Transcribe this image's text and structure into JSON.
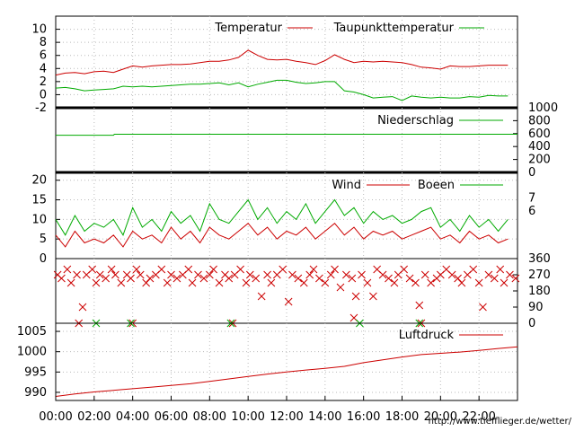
{
  "credit": "http://www.tiefflieger.de/wetter/",
  "colors": {
    "red": "#cc0000",
    "green": "#00aa00",
    "grid": "#bbbbbb"
  },
  "chart_data": [
    {
      "type": "line",
      "panel": "temperature",
      "x_range": [
        0,
        24
      ],
      "ylim": [
        -2,
        12
      ],
      "yticks": [
        "-2",
        "0",
        "2",
        "4",
        "6",
        "8",
        "10"
      ],
      "yticks_numeric": [
        -2,
        0,
        2,
        4,
        6,
        8,
        10
      ],
      "legend_position": "top",
      "series": [
        {
          "name": "Temperatur",
          "color": "#cc0000",
          "x": [
            0,
            0.5,
            1,
            1.5,
            2,
            2.5,
            3,
            3.5,
            4,
            4.5,
            5,
            5.5,
            6,
            6.5,
            7,
            7.5,
            8,
            8.5,
            9,
            9.5,
            10,
            10.5,
            11,
            11.5,
            12,
            12.5,
            13,
            13.5,
            14,
            14.5,
            15,
            15.5,
            16,
            16.5,
            17,
            17.5,
            18,
            18.5,
            19,
            19.5,
            20,
            20.5,
            21,
            21.5,
            22,
            22.5,
            23,
            23.5
          ],
          "values": [
            3.0,
            3.3,
            3.4,
            3.2,
            3.5,
            3.6,
            3.4,
            3.9,
            4.4,
            4.2,
            4.4,
            4.5,
            4.6,
            4.6,
            4.7,
            4.9,
            5.1,
            5.1,
            5.3,
            5.7,
            6.8,
            6.0,
            5.4,
            5.3,
            5.4,
            5.1,
            4.9,
            4.6,
            5.2,
            6.1,
            5.4,
            4.9,
            5.1,
            5.0,
            5.1,
            5.0,
            4.9,
            4.6,
            4.2,
            4.1,
            3.9,
            4.4,
            4.3,
            4.3,
            4.4,
            4.5,
            4.5,
            4.5
          ]
        },
        {
          "name": "Taupunkttemperatur",
          "color": "#00aa00",
          "x": [
            0,
            0.5,
            1,
            1.5,
            2,
            2.5,
            3,
            3.5,
            4,
            4.5,
            5,
            5.5,
            6,
            6.5,
            7,
            7.5,
            8,
            8.5,
            9,
            9.5,
            10,
            10.5,
            11,
            11.5,
            12,
            12.5,
            13,
            13.5,
            14,
            14.5,
            15,
            15.5,
            16,
            16.5,
            17,
            17.5,
            18,
            18.5,
            19,
            19.5,
            20,
            20.5,
            21,
            21.5,
            22,
            22.5,
            23,
            23.5
          ],
          "values": [
            1.0,
            1.1,
            0.9,
            0.6,
            0.7,
            0.8,
            0.9,
            1.3,
            1.2,
            1.3,
            1.2,
            1.3,
            1.4,
            1.5,
            1.6,
            1.6,
            1.7,
            1.8,
            1.5,
            1.8,
            1.2,
            1.6,
            1.9,
            2.2,
            2.2,
            1.9,
            1.7,
            1.8,
            2.0,
            2.0,
            0.6,
            0.4,
            0.0,
            -0.5,
            -0.4,
            -0.3,
            -0.9,
            -0.2,
            -0.4,
            -0.5,
            -0.4,
            -0.5,
            -0.5,
            -0.3,
            -0.4,
            -0.1,
            -0.2,
            -0.2
          ]
        }
      ]
    },
    {
      "type": "line",
      "panel": "precipitation",
      "x_range": [
        0,
        24
      ],
      "ylim": [
        0,
        1000
      ],
      "yticks": [
        "0",
        "200",
        "400",
        "600",
        "800",
        "1000"
      ],
      "yticks_numeric": [
        0,
        200,
        400,
        600,
        800,
        1000
      ],
      "legend_position": "top-right",
      "series": [
        {
          "name": "Niederschlag",
          "color": "#00aa00",
          "x": [
            0,
            3,
            3.05,
            24
          ],
          "values": [
            575,
            575,
            590,
            590
          ]
        }
      ]
    },
    {
      "type": "line",
      "panel": "wind",
      "x_range": [
        0,
        24
      ],
      "ylim": [
        0,
        22
      ],
      "yticks": [
        "0",
        "5",
        "10",
        "15",
        "20"
      ],
      "yticks_numeric": [
        0,
        5,
        10,
        15,
        20
      ],
      "right_labels": [
        "7",
        "6"
      ],
      "right_label_values": [
        15.5,
        12.2
      ],
      "legend_position": "top",
      "series": [
        {
          "name": "Wind",
          "color": "#cc0000",
          "x": [
            0,
            0.5,
            1,
            1.5,
            2,
            2.5,
            3,
            3.5,
            4,
            4.5,
            5,
            5.5,
            6,
            6.5,
            7,
            7.5,
            8,
            8.5,
            9,
            9.5,
            10,
            10.5,
            11,
            11.5,
            12,
            12.5,
            13,
            13.5,
            14,
            14.5,
            15,
            15.5,
            16,
            16.5,
            17,
            17.5,
            18,
            18.5,
            19,
            19.5,
            20,
            20.5,
            21,
            21.5,
            22,
            22.5,
            23,
            23.5
          ],
          "values": [
            6,
            3,
            7,
            4,
            5,
            4,
            6,
            3,
            7,
            5,
            6,
            4,
            8,
            5,
            7,
            4,
            8,
            6,
            5,
            7,
            9,
            6,
            8,
            5,
            7,
            6,
            8,
            5,
            7,
            9,
            6,
            8,
            5,
            7,
            6,
            7,
            5,
            6,
            7,
            8,
            5,
            6,
            4,
            7,
            5,
            6,
            4,
            5
          ]
        },
        {
          "name": "Boeen",
          "color": "#00aa00",
          "x": [
            0,
            0.5,
            1,
            1.5,
            2,
            2.5,
            3,
            3.5,
            4,
            4.5,
            5,
            5.5,
            6,
            6.5,
            7,
            7.5,
            8,
            8.5,
            9,
            9.5,
            10,
            10.5,
            11,
            11.5,
            12,
            12.5,
            13,
            13.5,
            14,
            14.5,
            15,
            15.5,
            16,
            16.5,
            17,
            17.5,
            18,
            18.5,
            19,
            19.5,
            20,
            20.5,
            21,
            21.5,
            22,
            22.5,
            23,
            23.5
          ],
          "values": [
            10,
            6,
            11,
            7,
            9,
            8,
            10,
            6,
            13,
            8,
            10,
            7,
            12,
            9,
            11,
            7,
            14,
            10,
            9,
            12,
            15,
            10,
            13,
            9,
            12,
            10,
            14,
            9,
            12,
            15,
            11,
            13,
            9,
            12,
            10,
            11,
            9,
            10,
            12,
            13,
            8,
            10,
            7,
            11,
            8,
            10,
            7,
            10
          ]
        }
      ]
    },
    {
      "type": "scatter",
      "panel": "wind-direction",
      "x_range": [
        0,
        24
      ],
      "ylim": [
        0,
        360
      ],
      "yticks": [
        "0",
        "90",
        "180",
        "270",
        "360"
      ],
      "yticks_numeric": [
        0,
        90,
        180,
        270,
        360
      ],
      "series": [
        {
          "name": "",
          "color": "#cc0000",
          "x": [
            0.1,
            0.3,
            0.6,
            0.8,
            1.1,
            1.4,
            1.6,
            1.9,
            2.1,
            2.3,
            2.6,
            2.9,
            3.1,
            3.4,
            3.7,
            3.9,
            4.2,
            4.4,
            4.7,
            4.9,
            5.2,
            5.5,
            5.8,
            6.0,
            6.3,
            6.6,
            6.9,
            7.1,
            7.4,
            7.7,
            8.0,
            8.2,
            8.5,
            8.8,
            9.0,
            9.3,
            9.6,
            9.9,
            10.1,
            10.4,
            10.7,
            11.0,
            11.2,
            11.5,
            11.8,
            12.1,
            12.3,
            12.6,
            12.9,
            13.2,
            13.4,
            13.7,
            14.0,
            14.3,
            14.5,
            14.8,
            15.1,
            15.4,
            15.6,
            15.9,
            16.2,
            16.5,
            16.7,
            17.0,
            17.3,
            17.6,
            17.8,
            18.1,
            18.4,
            18.7,
            18.9,
            19.2,
            19.5,
            19.8,
            20.0,
            20.3,
            20.6,
            20.9,
            21.1,
            21.4,
            21.7,
            22.0,
            22.2,
            22.5,
            22.8,
            23.1,
            23.3,
            23.6,
            23.9,
            1.2,
            4.0,
            9.2,
            15.5,
            19.0
          ],
          "values": [
            270,
            250,
            300,
            225,
            270,
            90,
            270,
            300,
            225,
            270,
            250,
            300,
            270,
            225,
            270,
            250,
            300,
            270,
            225,
            250,
            270,
            300,
            225,
            270,
            250,
            270,
            300,
            225,
            270,
            250,
            270,
            300,
            225,
            270,
            250,
            270,
            300,
            225,
            270,
            250,
            150,
            270,
            225,
            270,
            300,
            120,
            270,
            250,
            225,
            270,
            300,
            250,
            225,
            270,
            300,
            200,
            270,
            250,
            150,
            270,
            225,
            150,
            300,
            270,
            250,
            225,
            270,
            300,
            250,
            225,
            100,
            270,
            225,
            250,
            270,
            300,
            270,
            250,
            225,
            270,
            300,
            225,
            90,
            270,
            250,
            300,
            225,
            270,
            250,
            0,
            0,
            0,
            30,
            0
          ]
        },
        {
          "name": "",
          "color": "#00aa00",
          "x": [
            2.1,
            3.9,
            9.1,
            15.8,
            18.9
          ],
          "values": [
            0,
            0,
            0,
            0,
            0
          ]
        }
      ]
    },
    {
      "type": "line",
      "panel": "pressure",
      "x_range": [
        0,
        24
      ],
      "ylim": [
        988,
        1007
      ],
      "yticks": [
        "990",
        "995",
        "1000",
        "1005"
      ],
      "yticks_numeric": [
        990,
        995,
        1000,
        1005
      ],
      "xticks": [
        "00:00",
        "02:00",
        "04:00",
        "06:00",
        "08:00",
        "10:00",
        "12:00",
        "14:00",
        "16:00",
        "18:00",
        "20:00",
        "22:00"
      ],
      "xticks_numeric": [
        0,
        2,
        4,
        6,
        8,
        10,
        12,
        14,
        16,
        18,
        20,
        22
      ],
      "legend_position": "top-right",
      "series": [
        {
          "name": "Luftdruck",
          "color": "#cc0000",
          "x": [
            0,
            1,
            2,
            3,
            4,
            5,
            6,
            7,
            8,
            9,
            10,
            11,
            12,
            13,
            14,
            15,
            16,
            17,
            18,
            19,
            20,
            21,
            22,
            23,
            24
          ],
          "values": [
            989.0,
            989.6,
            990.1,
            990.5,
            990.9,
            991.3,
            991.7,
            992.1,
            992.7,
            993.3,
            993.9,
            994.5,
            995.0,
            995.5,
            995.9,
            996.4,
            997.3,
            998.0,
            998.7,
            999.3,
            999.6,
            999.9,
            1000.3,
            1000.8,
            1001.2
          ]
        }
      ]
    }
  ]
}
